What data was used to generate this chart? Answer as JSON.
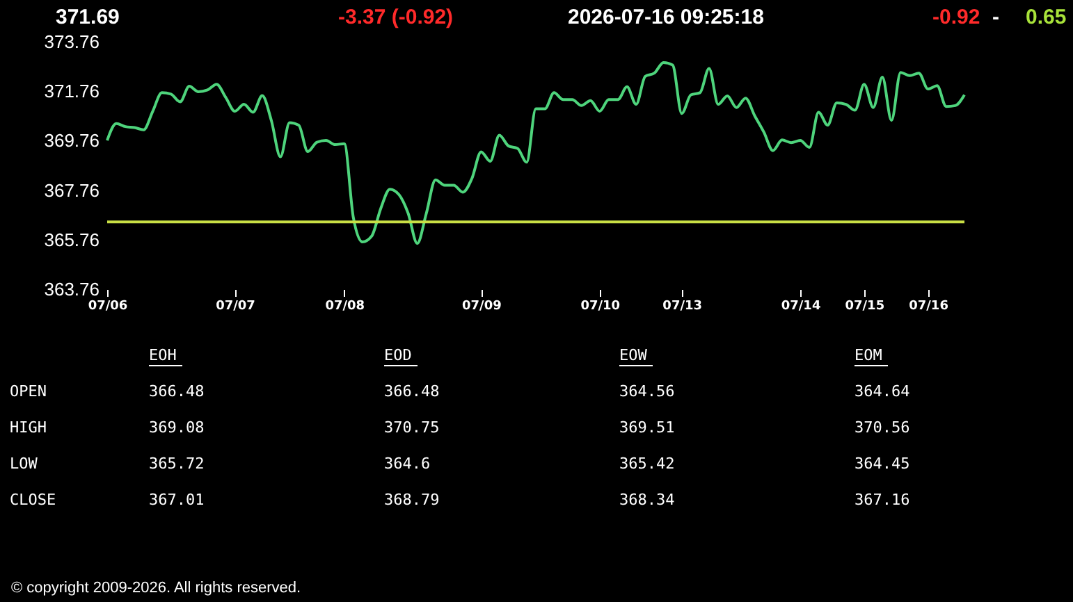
{
  "chart_data": {
    "type": "line",
    "categories": [
      "07/06",
      null,
      null,
      null,
      null,
      null,
      null,
      null,
      null,
      null,
      null,
      null,
      null,
      null,
      "07/07",
      null,
      null,
      null,
      null,
      null,
      null,
      null,
      null,
      null,
      null,
      null,
      "07/08",
      null,
      null,
      null,
      null,
      null,
      null,
      null,
      null,
      null,
      null,
      null,
      null,
      null,
      null,
      "07/09",
      null,
      null,
      null,
      null,
      null,
      null,
      null,
      null,
      null,
      null,
      null,
      null,
      "07/10",
      null,
      null,
      null,
      null,
      null,
      null,
      null,
      null,
      "07/13",
      null,
      null,
      null,
      null,
      null,
      null,
      null,
      null,
      null,
      null,
      null,
      null,
      "07/14",
      null,
      null,
      null,
      null,
      null,
      null,
      "07/15",
      null,
      null,
      null,
      null,
      null,
      null,
      "07/16",
      null,
      null,
      null,
      null
    ],
    "series": [
      {
        "color": "#4ed47c",
        "values": [
          369.77,
          370.45,
          370.33,
          370.29,
          370.2,
          370.95,
          371.7,
          371.64,
          371.33,
          371.96,
          371.74,
          371.81,
          372.04,
          371.51,
          370.95,
          371.23,
          370.91,
          371.58,
          370.58,
          369.11,
          370.49,
          370.39,
          369.32,
          369.7,
          369.77,
          369.6,
          369.64,
          366.64,
          365.67,
          365.9,
          367.02,
          367.8,
          367.58,
          366.83,
          365.61,
          366.83,
          368.18,
          367.96,
          367.96,
          367.68,
          368.24,
          369.31,
          368.93,
          369.98,
          369.55,
          369.45,
          368.89,
          371.05,
          371.05,
          371.7,
          371.42,
          371.42,
          371.18,
          371.38,
          370.95,
          371.42,
          371.42,
          371.94,
          371.23,
          372.36,
          372.49,
          372.92,
          372.82,
          370.86,
          371.61,
          371.7,
          372.68,
          371.23,
          371.57,
          371.1,
          371.48,
          370.77,
          370.11,
          369.36,
          369.79,
          369.68,
          369.77,
          369.49,
          370.91,
          370.39,
          371.29,
          371.23,
          370.99,
          372.04,
          371.1,
          372.33,
          370.58,
          372.52,
          372.39,
          372.49,
          371.85,
          371.98,
          371.14,
          371.18,
          371.61
        ]
      }
    ],
    "ylim": [
      363.76,
      373.76
    ],
    "yticks": [
      363.76,
      365.76,
      367.76,
      369.76,
      371.76,
      373.76
    ],
    "grid": false,
    "ref_lines": [
      {
        "axis": "y",
        "value": 366.48,
        "color": "#c9df45"
      }
    ],
    "annotations": [
      "371.69",
      "-3.37  (-0.92)",
      "2026-07-16   09:25:18",
      "-0.92",
      "-",
      "0.65",
      "EOH",
      "EOD",
      "EOW",
      "EOM",
      "OPEN",
      "366.48",
      "366.48",
      "364.56",
      "364.64",
      "HIGH",
      "369.08",
      "370.75",
      "369.51",
      "370.56",
      "LOW",
      "365.72",
      "364.6",
      "365.42",
      "364.45",
      "CLOSE",
      "367.01",
      "368.79",
      "368.34",
      "367.16",
      "© copyright 2009-2026. All rights reserved."
    ]
  }
}
